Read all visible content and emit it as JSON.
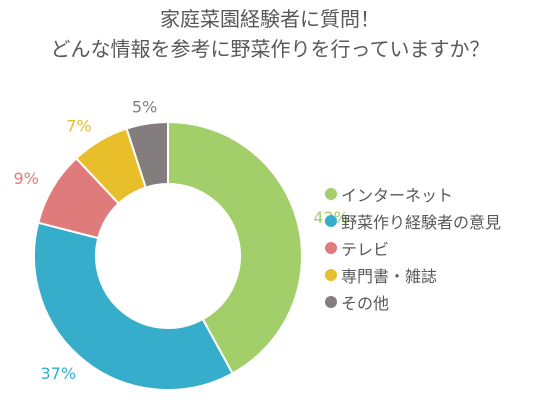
{
  "title_lines": [
    "家庭菜園経験者に質問！",
    "どんな情報を参考に野菜作りを行っていますか？"
  ],
  "chart_data": {
    "type": "pie",
    "donut": true,
    "title": "家庭菜園経験者に質問！どんな情報を参考に野菜作りを行っていますか？",
    "categories": [
      "インターネット",
      "野菜作り経験者の意見",
      "テレビ",
      "専門書・雑誌",
      "その他"
    ],
    "values": [
      42,
      37,
      9,
      7,
      5
    ],
    "labels": [
      "42%",
      "37%",
      "9%",
      "7%",
      "5%"
    ],
    "colors": [
      "#a3cf6b",
      "#36aecb",
      "#e07b7b",
      "#e8bf2a",
      "#847d7d"
    ],
    "legend": "right"
  }
}
